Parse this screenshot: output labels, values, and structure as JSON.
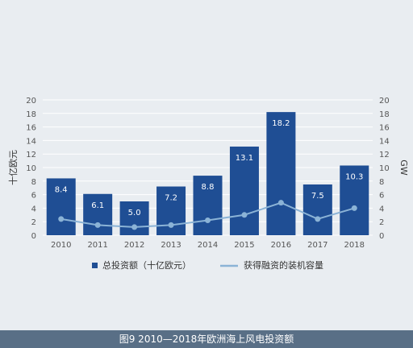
{
  "caption": "图9 2010—2018年欧洲海上风电投资额",
  "chart_data": {
    "type": "bar",
    "categories": [
      "2010",
      "2011",
      "2012",
      "2013",
      "2014",
      "2015",
      "2016",
      "2017",
      "2018"
    ],
    "series": [
      {
        "name": "总投资额（十亿欧元）",
        "kind": "bar",
        "axis": "left",
        "values": [
          8.4,
          6.1,
          5.0,
          7.2,
          8.8,
          13.1,
          18.2,
          7.5,
          10.3
        ],
        "labels": [
          "8.4",
          "6.1",
          "5.0",
          "7.2",
          "8.8",
          "13.1",
          "18.2",
          "7.5",
          "10.3"
        ]
      },
      {
        "name": "获得融资的装机容量",
        "kind": "line",
        "axis": "right",
        "values": [
          2.4,
          1.5,
          1.2,
          1.5,
          2.2,
          3.0,
          4.8,
          2.4,
          4.0
        ]
      }
    ],
    "ylabel": "十亿欧元",
    "y2label": "GW",
    "ylim": [
      0,
      20
    ],
    "y2lim": [
      0,
      20
    ],
    "yticks": [
      "0",
      "2",
      "4",
      "6",
      "8",
      "10",
      "12",
      "14",
      "16",
      "18",
      "20"
    ],
    "y2ticks": [
      "0",
      "2",
      "4",
      "6",
      "8",
      "10",
      "12",
      "14",
      "16",
      "18",
      "20"
    ],
    "grid": true,
    "legend_position": "bottom",
    "colors": {
      "bar": "#1f4e94",
      "line": "#8bb3d6",
      "grid": "#ffffff",
      "text": "#555555",
      "bg": "#e9edf1",
      "caption_bg": "#596f86"
    }
  }
}
